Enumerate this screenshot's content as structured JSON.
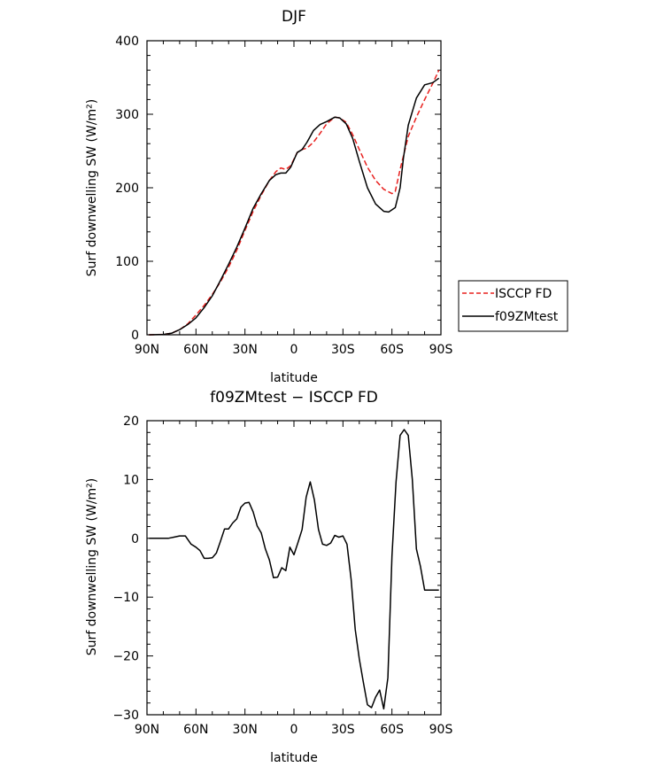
{
  "chart_data": [
    {
      "type": "line",
      "title": "DJF",
      "xlabel": "latitude",
      "ylabel": "Surf downwelling SW (W/m²)",
      "xlim": [
        90,
        -90
      ],
      "ylim": [
        0,
        400
      ],
      "xticks": [
        {
          "value": 90,
          "label": "90N"
        },
        {
          "value": 60,
          "label": "60N"
        },
        {
          "value": 30,
          "label": "30N"
        },
        {
          "value": 0,
          "label": "0"
        },
        {
          "value": -30,
          "label": "30S"
        },
        {
          "value": -60,
          "label": "60S"
        },
        {
          "value": -90,
          "label": "90S"
        }
      ],
      "yticks": [
        {
          "value": 0,
          "label": "0"
        },
        {
          "value": 100,
          "label": "100"
        },
        {
          "value": 200,
          "label": "200"
        },
        {
          "value": 300,
          "label": "300"
        },
        {
          "value": 400,
          "label": "400"
        }
      ],
      "legend": "right",
      "series": [
        {
          "name": "ISCCP FD",
          "color": "#e8201e",
          "dash": true,
          "x": [
            88.75,
            80,
            75,
            70,
            65,
            60,
            55,
            50,
            45,
            40,
            35,
            30,
            25,
            20,
            15,
            11,
            8,
            5,
            2,
            -2,
            -5,
            -8,
            -12,
            -16,
            -20,
            -25,
            -28,
            -32,
            -36,
            -40,
            -45,
            -50,
            -55,
            -60,
            -62,
            -65,
            -70,
            -75,
            -80,
            -85,
            -88.75
          ],
          "y": [
            0,
            0.5,
            2,
            7,
            15,
            27,
            40,
            55,
            72,
            92,
            115,
            142,
            168,
            190,
            210,
            222,
            227,
            225,
            230,
            248,
            252,
            254,
            262,
            274,
            287,
            296,
            295,
            289,
            272,
            252,
            228,
            210,
            198,
            192,
            195,
            225,
            270,
            296,
            320,
            342,
            360
          ]
        },
        {
          "name": "f09ZMtest",
          "color": "#000000",
          "dash": false,
          "x": [
            88.75,
            80,
            75,
            70,
            65,
            60,
            55,
            50,
            45,
            40,
            35,
            30,
            25,
            20,
            15,
            11,
            8,
            5,
            2,
            -2,
            -5,
            -8,
            -12,
            -16,
            -20,
            -25,
            -28,
            -32,
            -36,
            -40,
            -45,
            -50,
            -55,
            -58,
            -62,
            -65,
            -67,
            -70,
            -75,
            -80,
            -85,
            -88.75
          ],
          "y": [
            0,
            0.5,
            2,
            7,
            14,
            23,
            37,
            53,
            74,
            96,
            119,
            145,
            172,
            192,
            210,
            218,
            220,
            220,
            228,
            248,
            252,
            262,
            278,
            286,
            290,
            296,
            295,
            287,
            267,
            236,
            200,
            178,
            168,
            167,
            173,
            200,
            240,
            285,
            322,
            340,
            343,
            349
          ]
        }
      ]
    },
    {
      "type": "line",
      "title": "f09ZMtest − ISCCP FD",
      "xlabel": "latitude",
      "ylabel": "Surf downwelling SW (W/m²)",
      "xlim": [
        90,
        -90
      ],
      "ylim": [
        -30,
        20
      ],
      "xticks": [
        {
          "value": 90,
          "label": "90N"
        },
        {
          "value": 60,
          "label": "60N"
        },
        {
          "value": 30,
          "label": "30N"
        },
        {
          "value": 0,
          "label": "0"
        },
        {
          "value": -30,
          "label": "30S"
        },
        {
          "value": -60,
          "label": "60S"
        },
        {
          "value": -90,
          "label": "90S"
        }
      ],
      "yticks": [
        {
          "value": 20,
          "label": "20"
        },
        {
          "value": 10,
          "label": "10"
        },
        {
          "value": 0,
          "label": "0"
        },
        {
          "value": -10,
          "label": "−10"
        },
        {
          "value": -20,
          "label": "−20"
        },
        {
          "value": -30,
          "label": "−30"
        }
      ],
      "series": [
        {
          "name": "",
          "color": "#000000",
          "dash": false,
          "x": [
            88.75,
            81,
            77,
            73.5,
            70,
            66.5,
            63,
            60,
            57.5,
            55,
            52.5,
            50,
            47.5,
            45,
            42.5,
            40,
            37.5,
            35,
            32.5,
            30,
            27.5,
            25,
            22.5,
            20,
            17.5,
            15,
            12.5,
            10,
            7.5,
            5,
            2.5,
            0,
            -2.5,
            -5,
            -7.5,
            -10,
            -12.5,
            -15,
            -17.5,
            -20,
            -22.5,
            -25,
            -27.5,
            -30,
            -32.5,
            -35,
            -37.5,
            -40,
            -42.5,
            -45,
            -47.5,
            -50,
            -52.5,
            -55,
            -57.5,
            -60,
            -62.5,
            -65,
            -67.5,
            -70,
            -72.5,
            -75,
            -77.5,
            -80,
            -82.5,
            -85,
            -87.5,
            -88.75
          ],
          "y": [
            0,
            0,
            0,
            0.2,
            0.4,
            0.4,
            -1,
            -1.5,
            -2.1,
            -3.4,
            -3.4,
            -3.3,
            -2.5,
            -0.5,
            1.6,
            1.6,
            2.6,
            3.3,
            5.3,
            6,
            6.1,
            4.5,
            2.1,
            0.9,
            -1.8,
            -3.7,
            -6.7,
            -6.6,
            -5,
            -5.5,
            -1.5,
            -2.8,
            -0.7,
            1.5,
            7,
            9.6,
            6.5,
            1.5,
            -1,
            -1.2,
            -0.8,
            0.5,
            0.2,
            0.4,
            -1,
            -7,
            -15.5,
            -20.5,
            -24.5,
            -28.3,
            -28.8,
            -27,
            -25.8,
            -29,
            -23.7,
            -3,
            9.6,
            17.5,
            18.5,
            17.5,
            10,
            -1.8,
            -4.8,
            -8.8,
            -8.8,
            -8.8,
            -8.8,
            -8.8
          ]
        }
      ]
    }
  ]
}
